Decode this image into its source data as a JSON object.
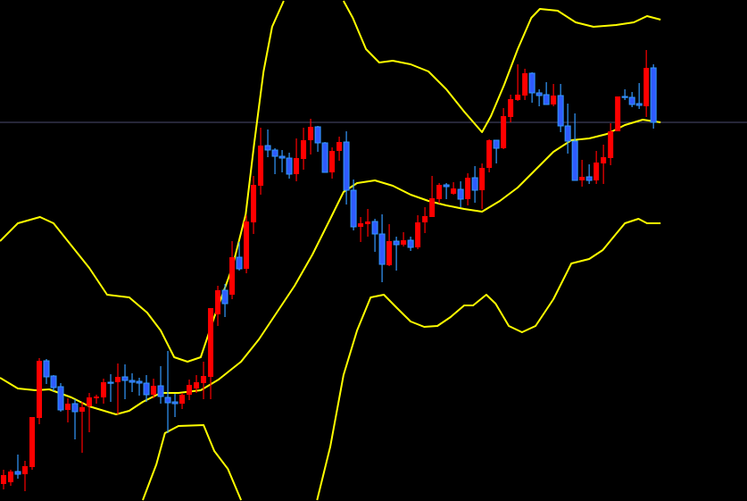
{
  "chart_data": {
    "type": "candlestick",
    "title": "",
    "xlabel": "",
    "ylabel": "",
    "grid": false,
    "xlim": [
      -0.5,
      104.1
    ],
    "ylim": [
      100,
      156.1
    ],
    "colors": {
      "background": "#000000",
      "up_candle": "#ff0000",
      "down_candle_body": "#2f5bff",
      "down_candle_wick": "#3399ff",
      "bands": "#ffff00",
      "price_line": "#4d4d70"
    },
    "current_price_line": 142.4,
    "candles_ohlc": [
      [
        101.9,
        103.5,
        101.3,
        102.9
      ],
      [
        102.1,
        103.5,
        101.7,
        103.3
      ],
      [
        103.3,
        105.2,
        102.5,
        103.0
      ],
      [
        103.0,
        104.5,
        101.1,
        103.9
      ],
      [
        103.8,
        109.4,
        103.5,
        109.4
      ],
      [
        109.3,
        116.0,
        108.6,
        115.7
      ],
      [
        115.7,
        115.9,
        113.1,
        113.9
      ],
      [
        114.0,
        114.1,
        112.3,
        112.7
      ],
      [
        112.8,
        113.2,
        110.0,
        110.2
      ],
      [
        110.2,
        111.5,
        108.8,
        110.9
      ],
      [
        110.9,
        111.4,
        106.9,
        110.0
      ],
      [
        110.0,
        111.1,
        105.4,
        110.5
      ],
      [
        110.6,
        112.1,
        107.7,
        111.6
      ],
      [
        111.5,
        111.9,
        110.9,
        111.7
      ],
      [
        111.6,
        113.7,
        110.9,
        113.3
      ],
      [
        113.3,
        114.2,
        111.1,
        113.2
      ],
      [
        113.3,
        115.4,
        109.7,
        113.9
      ],
      [
        113.9,
        115.3,
        111.4,
        113.5
      ],
      [
        113.5,
        114.3,
        112.2,
        113.3
      ],
      [
        113.4,
        113.8,
        111.8,
        113.2
      ],
      [
        113.2,
        114.1,
        111.1,
        111.9
      ],
      [
        111.9,
        113.7,
        111.5,
        112.9
      ],
      [
        112.9,
        115.1,
        110.9,
        111.7
      ],
      [
        111.6,
        116.8,
        107.6,
        111.0
      ],
      [
        111.1,
        112.0,
        109.4,
        110.9
      ],
      [
        110.9,
        112.1,
        110.3,
        111.9
      ],
      [
        111.9,
        113.6,
        111.3,
        113.0
      ],
      [
        112.6,
        114.1,
        112.1,
        113.3
      ],
      [
        113.2,
        115.6,
        111.4,
        114.0
      ],
      [
        113.9,
        121.6,
        111.4,
        121.6
      ],
      [
        120.9,
        124.1,
        119.6,
        123.6
      ],
      [
        123.6,
        124.3,
        120.6,
        122.1
      ],
      [
        123.1,
        129.1,
        122.6,
        127.3
      ],
      [
        127.3,
        129.0,
        125.8,
        126.0
      ],
      [
        126.0,
        132.0,
        125.5,
        131.3
      ],
      [
        131.2,
        136.4,
        129.9,
        135.4
      ],
      [
        135.3,
        141.8,
        134.3,
        139.8
      ],
      [
        139.8,
        141.6,
        138.5,
        139.3
      ],
      [
        139.3,
        139.5,
        136.6,
        138.6
      ],
      [
        138.6,
        139.3,
        136.8,
        138.4
      ],
      [
        138.4,
        139.0,
        136.1,
        136.6
      ],
      [
        136.6,
        140.6,
        135.8,
        138.4
      ],
      [
        138.3,
        141.8,
        137.1,
        140.4
      ],
      [
        140.4,
        142.8,
        138.8,
        141.9
      ],
      [
        141.9,
        142.0,
        139.1,
        140.1
      ],
      [
        140.1,
        140.2,
        136.8,
        136.8
      ],
      [
        136.8,
        139.6,
        136.1,
        139.2
      ],
      [
        139.2,
        140.8,
        138.1,
        140.2
      ],
      [
        140.2,
        141.4,
        133.2,
        134.8
      ],
      [
        134.8,
        136.0,
        130.3,
        130.7
      ],
      [
        130.7,
        131.8,
        129.0,
        131.1
      ],
      [
        131.0,
        132.7,
        129.6,
        131.3
      ],
      [
        131.3,
        131.6,
        127.9,
        129.9
      ],
      [
        129.9,
        132.1,
        124.5,
        126.5
      ],
      [
        126.4,
        131.0,
        126.3,
        129.1
      ],
      [
        129.1,
        129.6,
        125.8,
        128.7
      ],
      [
        128.7,
        130.1,
        128.5,
        129.2
      ],
      [
        129.2,
        129.6,
        128.0,
        128.4
      ],
      [
        128.4,
        132.0,
        128.2,
        131.2
      ],
      [
        131.2,
        132.9,
        130.0,
        131.9
      ],
      [
        131.8,
        136.4,
        131.8,
        133.9
      ],
      [
        133.8,
        135.6,
        133.3,
        135.4
      ],
      [
        135.4,
        135.6,
        133.8,
        135.2
      ],
      [
        134.4,
        135.7,
        134.3,
        135.0
      ],
      [
        134.9,
        135.8,
        132.9,
        133.8
      ],
      [
        133.8,
        136.7,
        133.1,
        136.2
      ],
      [
        136.2,
        137.5,
        133.4,
        134.8
      ],
      [
        134.8,
        137.8,
        132.7,
        137.3
      ],
      [
        137.3,
        140.5,
        136.8,
        140.4
      ],
      [
        140.4,
        140.4,
        137.8,
        139.5
      ],
      [
        139.5,
        144.0,
        139.4,
        143.1
      ],
      [
        143.0,
        145.5,
        142.4,
        145.0
      ],
      [
        144.9,
        148.9,
        144.8,
        145.5
      ],
      [
        145.4,
        148.4,
        144.9,
        147.9
      ],
      [
        147.9,
        148.0,
        144.6,
        145.7
      ],
      [
        145.7,
        146.1,
        144.2,
        145.4
      ],
      [
        145.5,
        146.9,
        144.4,
        144.4
      ],
      [
        144.4,
        146.7,
        144.2,
        145.4
      ],
      [
        145.4,
        146.7,
        141.3,
        142.0
      ],
      [
        142.0,
        144.5,
        138.9,
        140.3
      ],
      [
        140.3,
        143.4,
        135.9,
        135.9
      ],
      [
        135.9,
        138.2,
        135.2,
        136.3
      ],
      [
        136.3,
        137.7,
        135.5,
        135.9
      ],
      [
        135.9,
        139.2,
        135.5,
        137.9
      ],
      [
        137.8,
        139.9,
        135.5,
        138.5
      ],
      [
        138.4,
        142.3,
        137.6,
        141.4
      ],
      [
        141.4,
        145.3,
        141.4,
        145.3
      ],
      [
        145.3,
        146.1,
        144.9,
        145.2
      ],
      [
        145.2,
        145.8,
        144.1,
        144.4
      ],
      [
        144.5,
        146.8,
        143.9,
        144.3
      ],
      [
        144.2,
        150.5,
        143.0,
        148.5
      ],
      [
        148.5,
        148.9,
        141.7,
        142.4
      ]
    ],
    "bollinger_upper": [
      [
        -0.5,
        129.1
      ],
      [
        2,
        131.1
      ],
      [
        5.1,
        131.8
      ],
      [
        7,
        131.1
      ],
      [
        9.5,
        128.6
      ],
      [
        12,
        126.1
      ],
      [
        14.5,
        123.1
      ],
      [
        17.6,
        122.8
      ],
      [
        20.1,
        121.1
      ],
      [
        22,
        119.1
      ],
      [
        23.9,
        116.1
      ],
      [
        25.75,
        115.6
      ],
      [
        27.6,
        116.1
      ],
      [
        29.5,
        120.6
      ],
      [
        32,
        126.1
      ],
      [
        33.9,
        132.1
      ],
      [
        35.1,
        140.1
      ],
      [
        36.4,
        148.1
      ],
      [
        37.6,
        153.1
      ],
      [
        39.5,
        156.6
      ],
      [
        43.5,
        159
      ],
      [
        47.6,
        156.1
      ],
      [
        48.9,
        154.1
      ],
      [
        50.75,
        150.6
      ],
      [
        52.6,
        149.1
      ],
      [
        54.5,
        149.3
      ],
      [
        57,
        148.9
      ],
      [
        59.5,
        148.1
      ],
      [
        62,
        146.1
      ],
      [
        64.5,
        143.6
      ],
      [
        67,
        141.3
      ],
      [
        68.25,
        143.1
      ],
      [
        70.1,
        146.6
      ],
      [
        72,
        150.6
      ],
      [
        73.9,
        154.1
      ],
      [
        75.1,
        155.1
      ],
      [
        77.6,
        154.9
      ],
      [
        80.1,
        153.6
      ],
      [
        82.6,
        153.1
      ],
      [
        85.75,
        153.3
      ],
      [
        88.25,
        153.6
      ],
      [
        90.1,
        154.3
      ],
      [
        92,
        153.9
      ]
    ],
    "bollinger_middle": [
      [
        -0.5,
        113.8
      ],
      [
        2,
        112.6
      ],
      [
        4.5,
        112.4
      ],
      [
        6.4,
        112.5
      ],
      [
        9.5,
        111.6
      ],
      [
        12,
        110.6
      ],
      [
        15.75,
        109.7
      ],
      [
        17.6,
        110.1
      ],
      [
        19.5,
        111.1
      ],
      [
        22,
        112.1
      ],
      [
        24.5,
        112.1
      ],
      [
        27.6,
        112.4
      ],
      [
        30.1,
        113.6
      ],
      [
        33.25,
        115.6
      ],
      [
        35.75,
        118.1
      ],
      [
        38.25,
        121.1
      ],
      [
        40.75,
        124.1
      ],
      [
        43.25,
        127.6
      ],
      [
        45.75,
        131.6
      ],
      [
        47.6,
        134.6
      ],
      [
        49.5,
        135.6
      ],
      [
        52,
        135.9
      ],
      [
        54.5,
        135.3
      ],
      [
        57,
        134.3
      ],
      [
        59.5,
        133.6
      ],
      [
        62,
        133.1
      ],
      [
        64.5,
        132.7
      ],
      [
        67,
        132.4
      ],
      [
        69.5,
        133.6
      ],
      [
        72,
        135.1
      ],
      [
        74.5,
        137.1
      ],
      [
        77,
        139.1
      ],
      [
        79.5,
        140.4
      ],
      [
        82,
        140.6
      ],
      [
        84.5,
        141.1
      ],
      [
        87,
        142.1
      ],
      [
        89.5,
        142.7
      ],
      [
        92,
        142.4
      ]
    ],
    "bollinger_lower": [
      [
        15,
        95.5
      ],
      [
        19.5,
        100.0
      ],
      [
        21.4,
        104.1
      ],
      [
        22.6,
        107.6
      ],
      [
        24.5,
        108.4
      ],
      [
        28,
        108.5
      ],
      [
        29.5,
        105.6
      ],
      [
        31.4,
        103.6
      ],
      [
        33.25,
        100.0
      ],
      [
        38.5,
        97.0
      ],
      [
        43.9,
        100.0
      ],
      [
        45.75,
        106.1
      ],
      [
        47.6,
        114.1
      ],
      [
        49.5,
        119.1
      ],
      [
        51.4,
        122.8
      ],
      [
        53.25,
        123.1
      ],
      [
        55.1,
        121.6
      ],
      [
        57,
        120.1
      ],
      [
        58.9,
        119.5
      ],
      [
        60.75,
        119.6
      ],
      [
        62.6,
        120.6
      ],
      [
        64.5,
        121.9
      ],
      [
        65.75,
        121.9
      ],
      [
        67.6,
        123.1
      ],
      [
        68.9,
        122.1
      ],
      [
        70.75,
        119.6
      ],
      [
        72.6,
        118.9
      ],
      [
        74.5,
        119.6
      ],
      [
        77,
        122.6
      ],
      [
        79.5,
        126.6
      ],
      [
        82,
        127.1
      ],
      [
        83.9,
        128.1
      ],
      [
        85.75,
        129.9
      ],
      [
        87,
        131.1
      ],
      [
        88.9,
        131.6
      ],
      [
        90.1,
        131.1
      ],
      [
        92,
        131.1
      ]
    ]
  }
}
